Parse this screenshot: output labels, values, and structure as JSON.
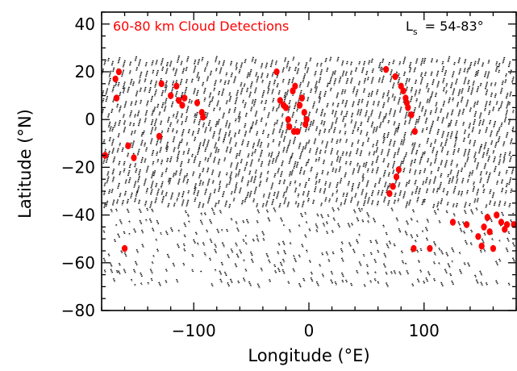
{
  "chart_data": {
    "type": "scatter",
    "title": "60-80 km Cloud Detections",
    "season_label": {
      "prefix": "L",
      "subscript": "s",
      "value": "= 54-83°"
    },
    "xlabel": "Longitude (°E)",
    "ylabel": "Latitude (°N)",
    "xlim": [
      -180,
      180
    ],
    "ylim": [
      -80,
      45
    ],
    "xticks": [
      -100,
      0,
      100
    ],
    "xtick_labels": [
      "−100",
      "0",
      "100"
    ],
    "yticks": [
      -80,
      -60,
      -40,
      -20,
      0,
      20,
      40
    ],
    "ytick_labels": [
      "−80",
      "−60",
      "−40",
      "−20",
      "0",
      "20",
      "40"
    ],
    "grid": false,
    "colors": {
      "observations": "#000000",
      "detections": "#ff0000"
    },
    "series": [
      {
        "role": "observations",
        "marker": "short-track",
        "note": "dense field of short black observation tracks spanning about -70 to 25 °N at all longitudes"
      },
      {
        "role": "detections",
        "marker": "filled-circle",
        "points": [
          [
            -165,
            20
          ],
          [
            -168,
            17
          ],
          [
            -167,
            9
          ],
          [
            -177,
            -15
          ],
          [
            -157,
            -11
          ],
          [
            -152,
            -16
          ],
          [
            -160,
            -54
          ],
          [
            -128,
            15
          ],
          [
            -120,
            10
          ],
          [
            -115,
            14
          ],
          [
            -113,
            8
          ],
          [
            -110,
            6
          ],
          [
            -108,
            9
          ],
          [
            -97,
            7
          ],
          [
            -93,
            3
          ],
          [
            -92,
            1
          ],
          [
            -130,
            -7
          ],
          [
            -28,
            20
          ],
          [
            -25,
            8
          ],
          [
            -20,
            5
          ],
          [
            -22,
            6
          ],
          [
            -18,
            0
          ],
          [
            -17,
            -3
          ],
          [
            -12,
            14
          ],
          [
            -14,
            12
          ],
          [
            -10,
            -5
          ],
          [
            -8,
            6
          ],
          [
            -6,
            9
          ],
          [
            -4,
            3
          ],
          [
            -2,
            0
          ],
          [
            -3,
            -2
          ],
          [
            -13,
            -5
          ],
          [
            67,
            21
          ],
          [
            75,
            18
          ],
          [
            80,
            14
          ],
          [
            82,
            12
          ],
          [
            84,
            9
          ],
          [
            85,
            7
          ],
          [
            89,
            2
          ],
          [
            92,
            -5
          ],
          [
            86,
            5
          ],
          [
            70,
            -31
          ],
          [
            73,
            -28
          ],
          [
            76,
            -24
          ],
          [
            78,
            -21
          ],
          [
            91,
            -54
          ],
          [
            105,
            -54
          ],
          [
            125,
            -43
          ],
          [
            137,
            -44
          ],
          [
            147,
            -49
          ],
          [
            150,
            -53
          ],
          [
            152,
            -45
          ],
          [
            155,
            -41
          ],
          [
            160,
            -54
          ],
          [
            163,
            -40
          ],
          [
            167,
            -43
          ],
          [
            170,
            -46
          ],
          [
            172,
            -44
          ],
          [
            178,
            -44
          ],
          [
            157,
            -47
          ]
        ]
      }
    ]
  }
}
